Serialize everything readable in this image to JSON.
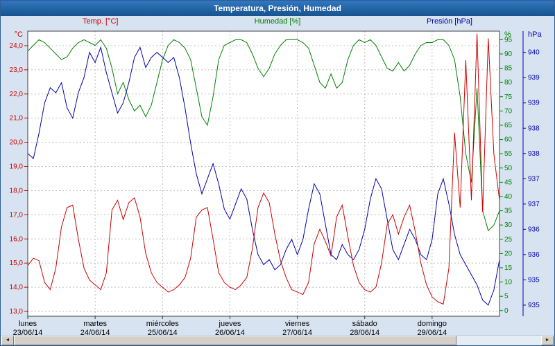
{
  "window": {
    "title": "Temperatura, Presión, Humedad"
  },
  "scrollbar": {
    "left_arrow": "◄",
    "right_arrow": "►"
  },
  "chart_data": {
    "type": "line",
    "title": "Temperatura, Presión, Humedad",
    "x_unit": "hours since lunes 23/06/14 00:00",
    "grid": "dashed",
    "x_labels": [
      {
        "name": "lunes",
        "date": "23/06/14"
      },
      {
        "name": "martes",
        "date": "24/06/14"
      },
      {
        "name": "miércoles",
        "date": "25/06/14"
      },
      {
        "name": "jueves",
        "date": "26/06/14"
      },
      {
        "name": "viernes",
        "date": "27/06/14"
      },
      {
        "name": "sábado",
        "date": "28/06/14"
      },
      {
        "name": "domingo",
        "date": "29/06/14"
      }
    ],
    "axes": {
      "temp": {
        "unit": "°C",
        "color": "#cc0000",
        "min": 12.8,
        "max": 24.6,
        "ticks": [
          {
            "v": 24,
            "label": "24,0"
          },
          {
            "v": 23,
            "label": "23,0"
          },
          {
            "v": 22,
            "label": "22,0"
          },
          {
            "v": 21,
            "label": "21,0"
          },
          {
            "v": 20,
            "label": "20,0"
          },
          {
            "v": 19,
            "label": "19,0"
          },
          {
            "v": 18,
            "label": "18,0"
          },
          {
            "v": 17,
            "label": "17,0"
          },
          {
            "v": 16,
            "label": "16,0"
          },
          {
            "v": 15,
            "label": "15,0"
          },
          {
            "v": 14,
            "label": "14,0"
          },
          {
            "v": 13,
            "label": "13,0"
          }
        ]
      },
      "humidity": {
        "unit": "%",
        "color": "#008000",
        "min": -2,
        "max": 98,
        "ticks": [
          {
            "v": 95,
            "label": "95"
          },
          {
            "v": 90,
            "label": "90"
          },
          {
            "v": 85,
            "label": "85"
          },
          {
            "v": 80,
            "label": "80"
          },
          {
            "v": 75,
            "label": "75"
          },
          {
            "v": 70,
            "label": "70"
          },
          {
            "v": 65,
            "label": "65"
          },
          {
            "v": 60,
            "label": "60"
          },
          {
            "v": 55,
            "label": "55"
          },
          {
            "v": 50,
            "label": "50"
          },
          {
            "v": 45,
            "label": "45"
          },
          {
            "v": 40,
            "label": "40"
          },
          {
            "v": 35,
            "label": "35"
          },
          {
            "v": 30,
            "label": "30"
          },
          {
            "v": 25,
            "label": "25"
          },
          {
            "v": 20,
            "label": "20"
          },
          {
            "v": 15,
            "label": "15"
          },
          {
            "v": 10,
            "label": "10"
          },
          {
            "v": 5,
            "label": "5"
          },
          {
            "v": 0,
            "label": "0"
          }
        ]
      },
      "pressure": {
        "unit": "hPa",
        "color": "#0000aa",
        "min": 934.78,
        "max": 940.42,
        "ticks": [
          {
            "v": 940,
            "label": "940"
          },
          {
            "v": 939.5,
            "label": "939"
          },
          {
            "v": 939,
            "label": "939"
          },
          {
            "v": 938.5,
            "label": "938"
          },
          {
            "v": 938,
            "label": "938"
          },
          {
            "v": 937.5,
            "label": "937"
          },
          {
            "v": 937,
            "label": "937"
          },
          {
            "v": 936.5,
            "label": "936"
          },
          {
            "v": 936,
            "label": "936"
          },
          {
            "v": 935.5,
            "label": "935"
          },
          {
            "v": 935,
            "label": "935"
          }
        ]
      }
    },
    "x": [
      0,
      2,
      4,
      6,
      8,
      10,
      12,
      14,
      16,
      18,
      20,
      22,
      24,
      26,
      28,
      30,
      32,
      34,
      36,
      38,
      40,
      42,
      44,
      46,
      48,
      50,
      52,
      54,
      56,
      58,
      60,
      62,
      64,
      66,
      68,
      70,
      72,
      74,
      76,
      78,
      80,
      82,
      84,
      86,
      88,
      90,
      92,
      94,
      96,
      98,
      100,
      102,
      104,
      106,
      108,
      110,
      112,
      114,
      116,
      118,
      120,
      122,
      124,
      126,
      128,
      130,
      132,
      134,
      136,
      138,
      140,
      142,
      144,
      146,
      148,
      150,
      152,
      154,
      156,
      158,
      160,
      162,
      164,
      166,
      168
    ],
    "series": [
      {
        "id": "temp",
        "name": "Temp.  [°C]",
        "color": "#cc0000",
        "axis": "temp",
        "z": 3,
        "values": [
          14.9,
          15.2,
          15.1,
          14.2,
          13.9,
          14.8,
          16.5,
          17.3,
          17.4,
          16.0,
          14.8,
          14.3,
          14.1,
          13.9,
          14.6,
          17.2,
          17.6,
          16.8,
          17.5,
          17.7,
          16.9,
          15.4,
          14.6,
          14.2,
          14.0,
          13.8,
          13.9,
          14.1,
          14.4,
          15.2,
          16.9,
          17.2,
          17.3,
          16.0,
          14.6,
          14.2,
          14.0,
          13.9,
          14.1,
          14.4,
          15.6,
          17.3,
          17.9,
          17.5,
          16.2,
          15.1,
          14.4,
          13.9,
          13.8,
          13.7,
          14.2,
          15.8,
          16.4,
          15.9,
          15.3,
          16.9,
          17.4,
          16.1,
          14.9,
          14.2,
          13.9,
          13.8,
          14.0,
          15.0,
          16.6,
          17.0,
          16.2,
          16.9,
          17.4,
          16.3,
          15.0,
          14.1,
          13.6,
          13.4,
          13.3,
          14.8,
          20.4,
          17.3,
          23.4,
          17.6,
          24.5,
          17.1,
          24.3,
          19.5,
          17.6
        ]
      },
      {
        "id": "humidity",
        "name": "Humedad [%]",
        "color": "#008000",
        "axis": "humidity",
        "z": 1,
        "values": [
          91,
          93,
          95,
          94,
          92,
          90,
          88,
          89,
          92,
          94,
          95,
          94,
          93,
          95,
          92,
          85,
          76,
          80,
          74,
          70,
          72,
          68,
          72,
          80,
          88,
          93,
          95,
          94,
          92,
          88,
          78,
          68,
          65,
          75,
          88,
          93,
          94,
          95,
          95,
          94,
          90,
          85,
          82,
          85,
          90,
          93,
          95,
          95,
          95,
          94,
          92,
          86,
          80,
          78,
          83,
          78,
          80,
          88,
          93,
          95,
          94,
          95,
          93,
          89,
          85,
          84,
          87,
          84,
          86,
          90,
          93,
          94,
          94,
          95,
          95,
          93,
          88,
          75,
          55,
          45,
          78,
          35,
          28,
          30,
          35
        ]
      },
      {
        "id": "pressure",
        "name": "Presión [hPa]",
        "color": "#0000aa",
        "axis": "pressure",
        "z": 2,
        "values": [
          938.0,
          937.9,
          938.4,
          939.0,
          939.3,
          939.2,
          939.4,
          938.9,
          938.7,
          939.2,
          939.5,
          940.0,
          939.8,
          940.1,
          939.6,
          939.2,
          938.8,
          939.0,
          939.4,
          939.9,
          940.1,
          939.7,
          939.9,
          940.0,
          939.9,
          939.8,
          939.9,
          939.5,
          938.9,
          938.2,
          937.6,
          937.2,
          937.5,
          937.8,
          937.4,
          936.9,
          936.7,
          937.0,
          937.3,
          937.1,
          936.5,
          936.0,
          935.8,
          935.9,
          935.7,
          935.8,
          936.1,
          936.3,
          936.0,
          936.3,
          936.9,
          937.4,
          937.2,
          936.6,
          936.0,
          935.9,
          936.2,
          936.0,
          935.9,
          936.1,
          936.5,
          937.1,
          937.5,
          937.3,
          936.7,
          936.1,
          935.9,
          936.2,
          936.5,
          936.3,
          936.0,
          935.9,
          936.3,
          937.2,
          937.5,
          937.0,
          936.4,
          936.0,
          935.8,
          935.6,
          935.4,
          935.1,
          935.0,
          935.3,
          935.9
        ]
      }
    ]
  }
}
